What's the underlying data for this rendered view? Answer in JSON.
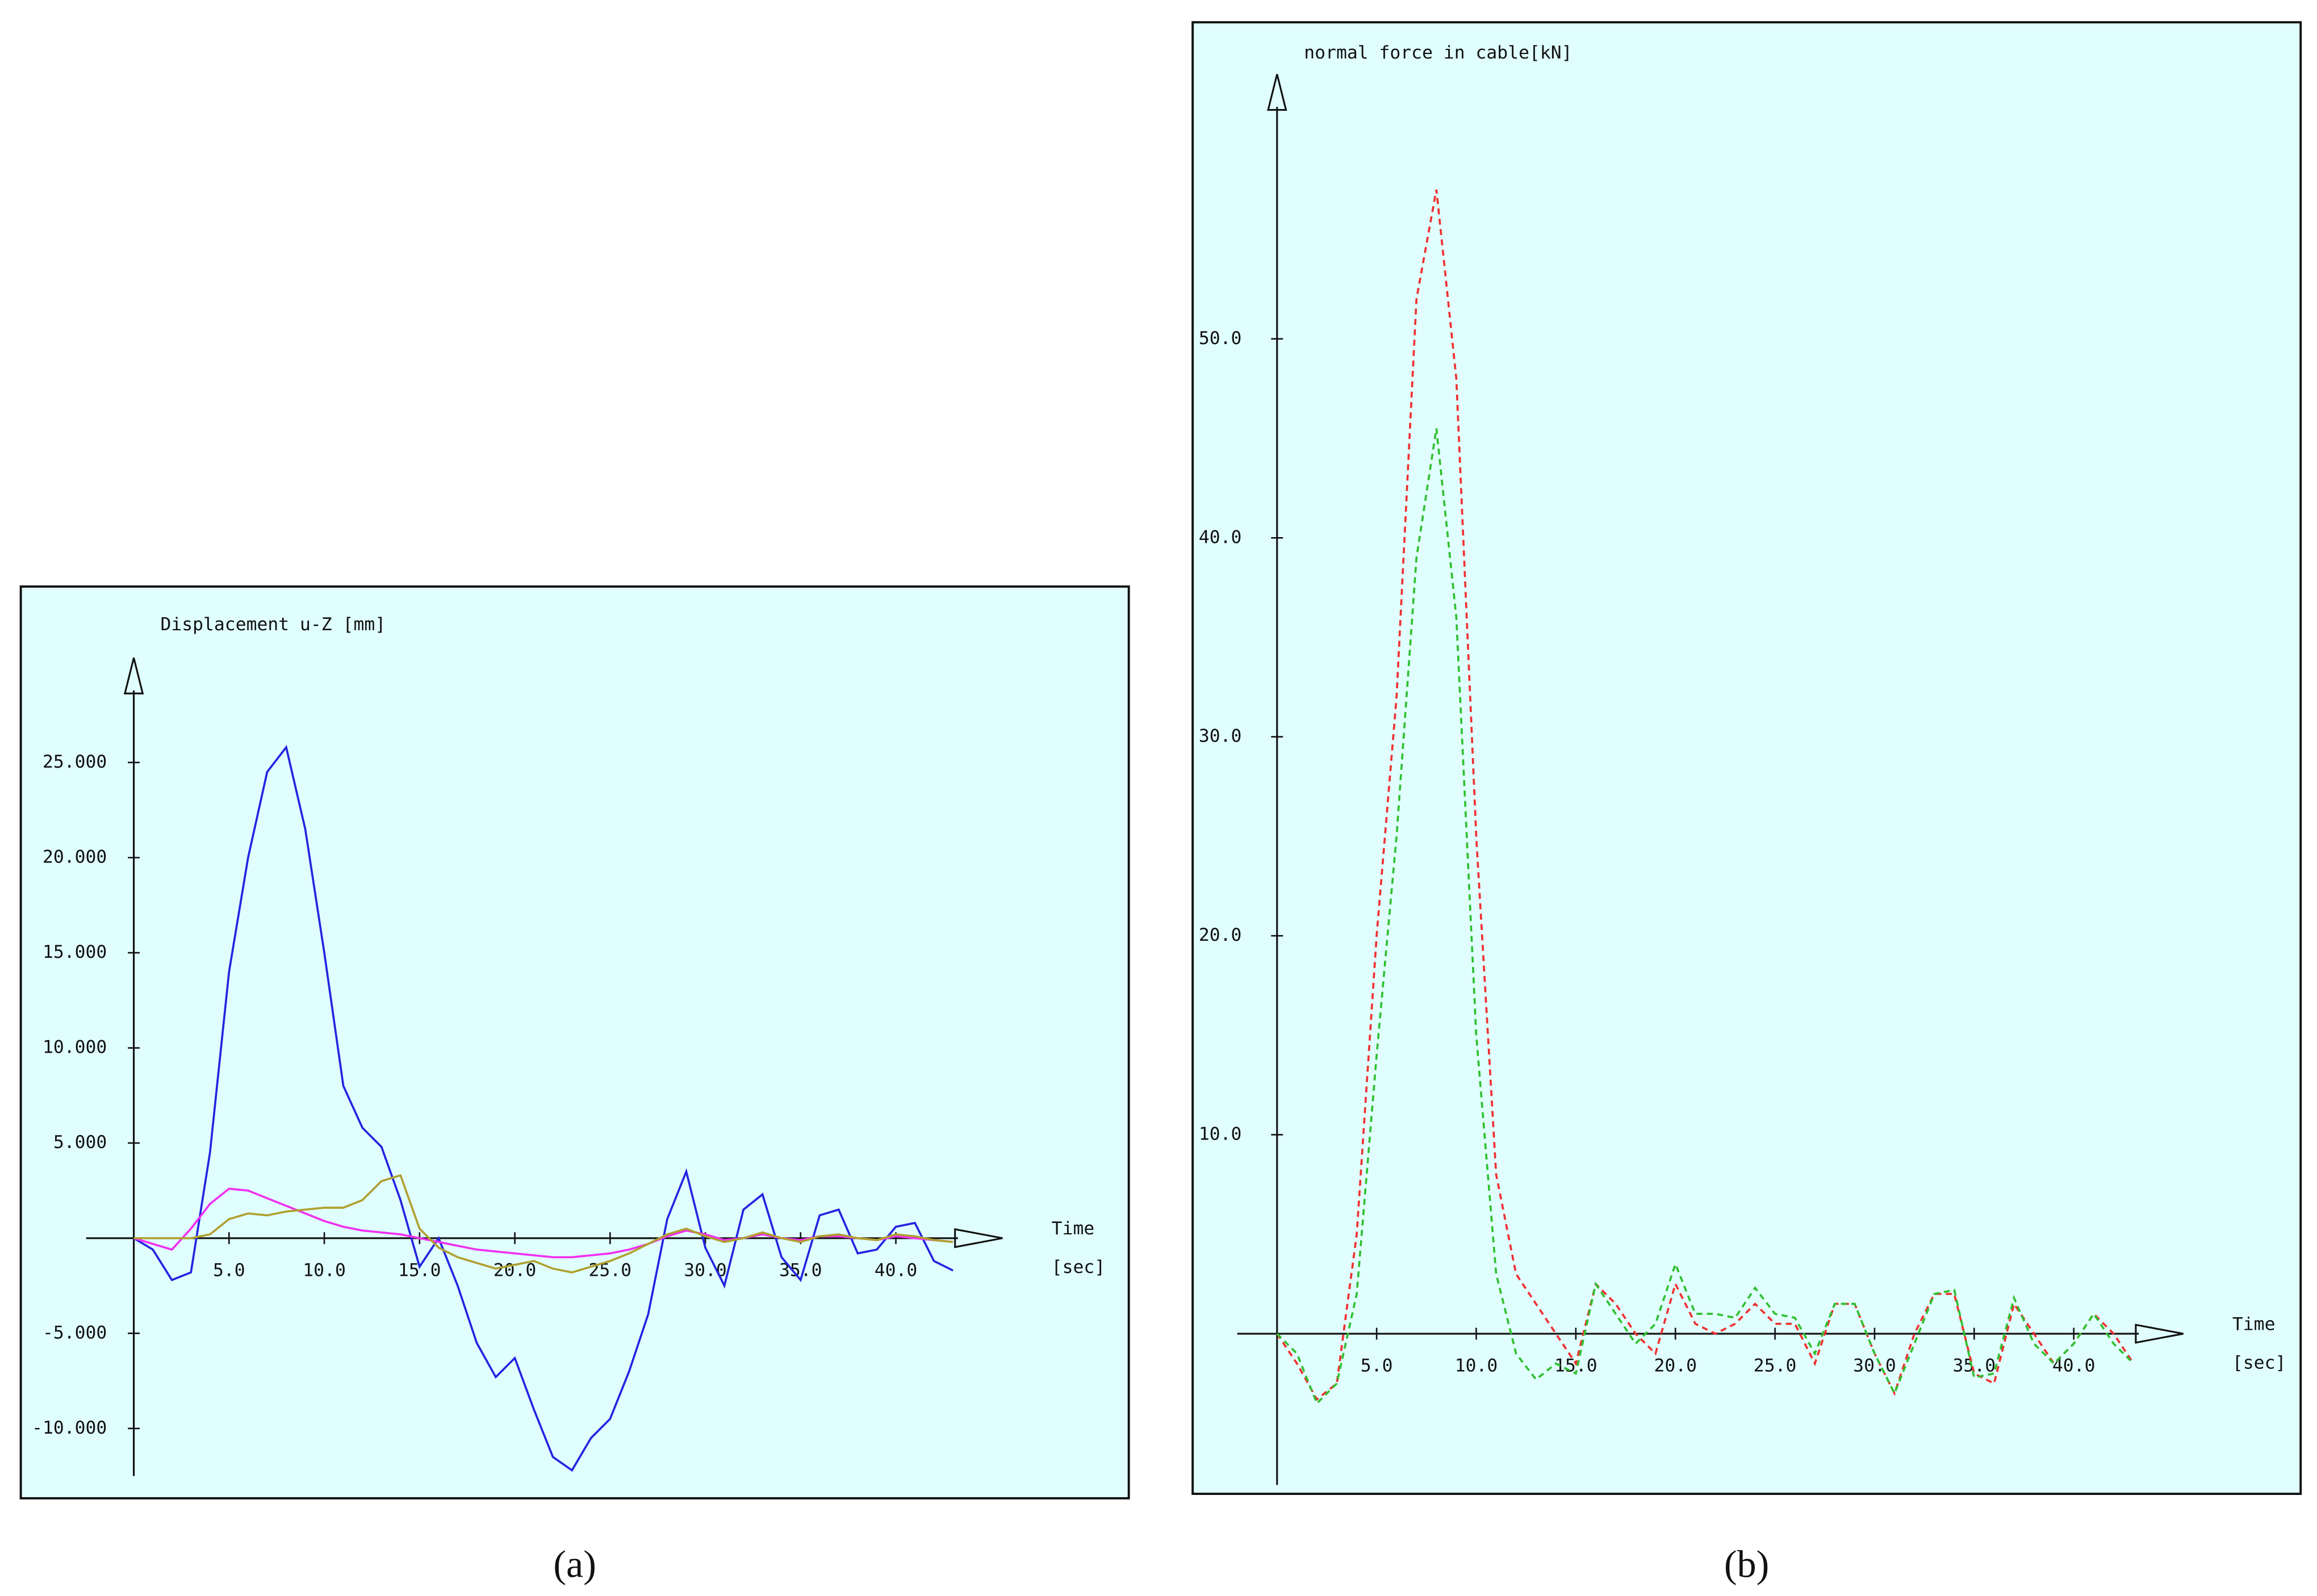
{
  "chart_data": [
    {
      "type": "line",
      "title": "Displacement u-Z [mm]",
      "x_label": "Time",
      "x_unit": "[sec]",
      "caption": "(a)",
      "xlim": [
        -2.5,
        45.6
      ],
      "ylim": [
        -12.5,
        30.5
      ],
      "xticks": [
        {
          "value": 5,
          "label": "5.0"
        },
        {
          "value": 10,
          "label": "10.0"
        },
        {
          "value": 15,
          "label": "15.0"
        },
        {
          "value": 20,
          "label": "20.0"
        },
        {
          "value": 25,
          "label": "25.0"
        },
        {
          "value": 30,
          "label": "30.0"
        },
        {
          "value": 35,
          "label": "35.0"
        },
        {
          "value": 40,
          "label": "40.0"
        }
      ],
      "yticks": [
        {
          "value": -10,
          "label": "-10.000"
        },
        {
          "value": -5,
          "label": "-5.000"
        },
        {
          "value": 5,
          "label": "5.000"
        },
        {
          "value": 10,
          "label": "10.000"
        },
        {
          "value": 15,
          "label": "15.000"
        },
        {
          "value": 20,
          "label": "20.000"
        },
        {
          "value": 25,
          "label": "25.000"
        }
      ],
      "x": [
        0,
        1,
        2,
        3,
        4,
        5,
        6,
        7,
        8,
        9,
        10,
        11,
        12,
        13,
        14,
        15,
        16,
        17,
        18,
        19,
        20,
        21,
        22,
        23,
        24,
        25,
        26,
        27,
        28,
        29,
        30,
        31,
        32,
        33,
        34,
        35,
        36,
        37,
        38,
        39,
        40,
        41,
        42,
        43
      ],
      "series": [
        {
          "color": "#2424e0",
          "dashed": false,
          "values": [
            0,
            -0.6,
            -2.2,
            -1.8,
            4.5,
            14,
            20,
            24.5,
            25.8,
            21.5,
            15,
            8,
            5.8,
            4.8,
            2,
            -1.5,
            0,
            -2.5,
            -5.5,
            -7.3,
            -6.3,
            -9,
            -11.5,
            -12.2,
            -10.5,
            -9.5,
            -7,
            -4,
            1,
            3.5,
            -0.5,
            -2.5,
            1.5,
            2.3,
            -1,
            -2.2,
            1.2,
            1.5,
            -0.8,
            -0.6,
            0.6,
            0.8,
            -1.2,
            -1.7
          ]
        },
        {
          "color": "#f030f0",
          "dashed": false,
          "values": [
            0,
            -0.3,
            -0.6,
            0.5,
            1.8,
            2.6,
            2.5,
            2.1,
            1.7,
            1.3,
            0.9,
            0.6,
            0.4,
            0.3,
            0.2,
            0,
            -0.2,
            -0.4,
            -0.6,
            -0.7,
            -0.8,
            -0.9,
            -1.0,
            -1.0,
            -0.9,
            -0.8,
            -0.6,
            -0.3,
            0.1,
            0.4,
            0.2,
            -0.1,
            0,
            0.2,
            0,
            -0.1,
            0.1,
            0.1,
            0,
            -0.1,
            0.1,
            0,
            -0.1,
            -0.2
          ]
        },
        {
          "color": "#b0a030",
          "dashed": false,
          "values": [
            0,
            0,
            0,
            0,
            0.2,
            1.0,
            1.3,
            1.2,
            1.4,
            1.5,
            1.6,
            1.6,
            2.0,
            3.0,
            3.3,
            0.5,
            -0.5,
            -1.0,
            -1.3,
            -1.6,
            -1.4,
            -1.2,
            -1.6,
            -1.8,
            -1.5,
            -1.2,
            -0.8,
            -0.3,
            0.2,
            0.5,
            0.1,
            -0.2,
            0,
            0.3,
            0,
            -0.2,
            0.1,
            0.2,
            0,
            -0.1,
            0.2,
            0.1,
            -0.1,
            -0.2
          ]
        }
      ]
    },
    {
      "type": "line",
      "title": "normal force in cable[kN]",
      "x_label": "Time",
      "x_unit": "[sec]",
      "caption": "(b)",
      "xlim": [
        -2,
        45.5
      ],
      "ylim": [
        -7.6,
        63.3
      ],
      "xticks": [
        {
          "value": 5,
          "label": "5.0"
        },
        {
          "value": 10,
          "label": "10.0"
        },
        {
          "value": 15,
          "label": "15.0"
        },
        {
          "value": 20,
          "label": "20.0"
        },
        {
          "value": 25,
          "label": "25.0"
        },
        {
          "value": 30,
          "label": "30.0"
        },
        {
          "value": 35,
          "label": "35.0"
        },
        {
          "value": 40,
          "label": "40.0"
        }
      ],
      "yticks": [
        {
          "value": 10,
          "label": "10.0"
        },
        {
          "value": 20,
          "label": "20.0"
        },
        {
          "value": 30,
          "label": "30.0"
        },
        {
          "value": 40,
          "label": "40.0"
        },
        {
          "value": 50,
          "label": "50.0"
        }
      ],
      "x": [
        0,
        1,
        2,
        3,
        4,
        5,
        6,
        7,
        8,
        9,
        10,
        11,
        12,
        13,
        14,
        15,
        16,
        17,
        18,
        19,
        20,
        21,
        22,
        23,
        24,
        25,
        26,
        27,
        28,
        29,
        30,
        31,
        32,
        33,
        34,
        35,
        36,
        37,
        38,
        39,
        40,
        41,
        42,
        43
      ],
      "series": [
        {
          "color": "#f03030",
          "dashed": true,
          "values": [
            0,
            -1.5,
            -3.3,
            -2.5,
            5,
            20,
            32,
            52,
            57.5,
            48,
            25,
            8,
            3,
            1.5,
            0,
            -1.5,
            2.5,
            1.5,
            0,
            -1,
            2.5,
            0.5,
            0,
            0.5,
            1.5,
            0.5,
            0.5,
            -1.5,
            1.5,
            1.5,
            -1,
            -3,
            0,
            2,
            2,
            -2,
            -2.5,
            1.5,
            0,
            -1.5,
            -0.5,
            1,
            0,
            -1.5
          ]
        },
        {
          "color": "#30c030",
          "dashed": true,
          "values": [
            0,
            -1,
            -3.5,
            -2.5,
            2,
            14,
            25,
            39,
            45.5,
            36,
            15,
            3,
            -1,
            -2.3,
            -1.5,
            -2,
            2.5,
            1,
            -0.5,
            0.5,
            3.5,
            1,
            1,
            0.8,
            2.3,
            1,
            0.8,
            -1,
            1.5,
            1.5,
            -1,
            -3,
            -0.5,
            2,
            2.2,
            -2.2,
            -2,
            1.8,
            -0.5,
            -1.5,
            -0.5,
            1,
            -0.5,
            -1.5
          ]
        }
      ]
    }
  ]
}
